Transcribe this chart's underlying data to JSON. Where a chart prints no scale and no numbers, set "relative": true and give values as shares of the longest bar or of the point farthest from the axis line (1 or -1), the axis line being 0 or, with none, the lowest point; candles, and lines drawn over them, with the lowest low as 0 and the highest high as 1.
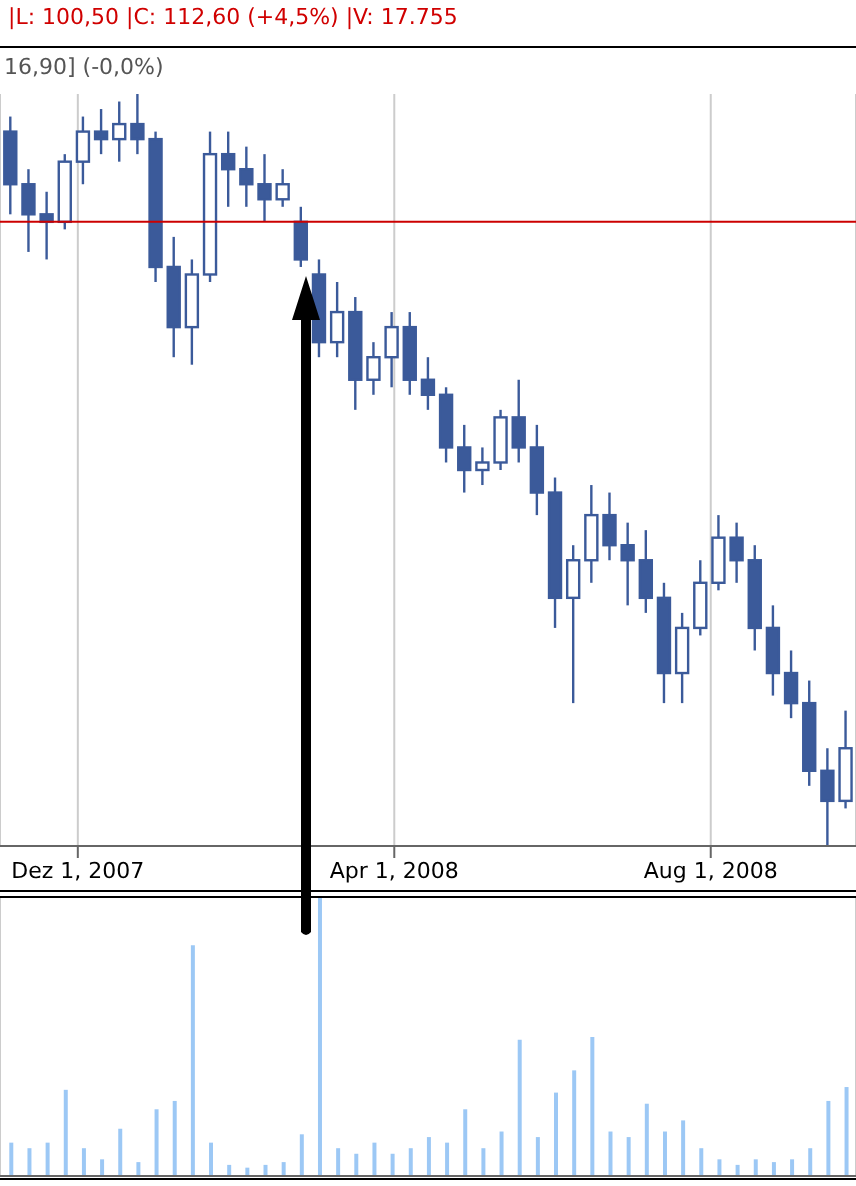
{
  "chart_data": [
    {
      "type": "candlestick",
      "relative": true,
      "annotations": [
        "|L: 100,50 |C: 112,60 (+4,5%) |V: 17.755",
        "16,90] (-0,0%)"
      ],
      "x": [
        "2007-11-05",
        "2007-11-12",
        "2007-11-19",
        "2007-11-26",
        "2007-12-03",
        "2007-12-10",
        "2007-12-17",
        "2007-12-24",
        "2007-12-31",
        "2008-01-07",
        "2008-01-14",
        "2008-01-21",
        "2008-01-28",
        "2008-02-04",
        "2008-02-11",
        "2008-02-18",
        "2008-02-25",
        "2008-03-03",
        "2008-03-10",
        "2008-03-17",
        "2008-03-24",
        "2008-03-31",
        "2008-04-07",
        "2008-04-14",
        "2008-04-21",
        "2008-04-28",
        "2008-05-05",
        "2008-05-12",
        "2008-05-19",
        "2008-05-26",
        "2008-06-02",
        "2008-06-09",
        "2008-06-16",
        "2008-06-23",
        "2008-06-30",
        "2008-07-07",
        "2008-07-14",
        "2008-07-21",
        "2008-07-28",
        "2008-08-04",
        "2008-08-11",
        "2008-08-18",
        "2008-08-25",
        "2008-09-01",
        "2008-09-08",
        "2008-09-15",
        "2008-09-22"
      ],
      "ohlc": [
        [
          0.95,
          0.97,
          0.84,
          0.88
        ],
        [
          0.88,
          0.9,
          0.79,
          0.84
        ],
        [
          0.84,
          0.87,
          0.78,
          0.83
        ],
        [
          0.83,
          0.92,
          0.82,
          0.91
        ],
        [
          0.91,
          0.97,
          0.88,
          0.95
        ],
        [
          0.95,
          0.98,
          0.92,
          0.94
        ],
        [
          0.94,
          0.99,
          0.91,
          0.96
        ],
        [
          0.96,
          1.0,
          0.92,
          0.94
        ],
        [
          0.94,
          0.95,
          0.75,
          0.77
        ],
        [
          0.77,
          0.81,
          0.65,
          0.69
        ],
        [
          0.69,
          0.78,
          0.64,
          0.76
        ],
        [
          0.76,
          0.95,
          0.75,
          0.92
        ],
        [
          0.92,
          0.95,
          0.85,
          0.9
        ],
        [
          0.9,
          0.93,
          0.85,
          0.88
        ],
        [
          0.88,
          0.92,
          0.83,
          0.86
        ],
        [
          0.86,
          0.9,
          0.85,
          0.88
        ],
        [
          0.83,
          0.85,
          0.77,
          0.78
        ],
        [
          0.76,
          0.78,
          0.65,
          0.67
        ],
        [
          0.67,
          0.75,
          0.65,
          0.71
        ],
        [
          0.71,
          0.73,
          0.58,
          0.62
        ],
        [
          0.62,
          0.67,
          0.6,
          0.65
        ],
        [
          0.65,
          0.71,
          0.61,
          0.69
        ],
        [
          0.69,
          0.71,
          0.6,
          0.62
        ],
        [
          0.62,
          0.65,
          0.58,
          0.6
        ],
        [
          0.6,
          0.61,
          0.51,
          0.53
        ],
        [
          0.53,
          0.56,
          0.47,
          0.5
        ],
        [
          0.5,
          0.53,
          0.48,
          0.51
        ],
        [
          0.51,
          0.58,
          0.5,
          0.57
        ],
        [
          0.57,
          0.62,
          0.51,
          0.53
        ],
        [
          0.53,
          0.56,
          0.44,
          0.47
        ],
        [
          0.47,
          0.49,
          0.29,
          0.33
        ],
        [
          0.33,
          0.4,
          0.19,
          0.38
        ],
        [
          0.38,
          0.48,
          0.35,
          0.44
        ],
        [
          0.44,
          0.47,
          0.38,
          0.4
        ],
        [
          0.4,
          0.43,
          0.32,
          0.38
        ],
        [
          0.38,
          0.42,
          0.31,
          0.33
        ],
        [
          0.33,
          0.35,
          0.19,
          0.23
        ],
        [
          0.23,
          0.31,
          0.19,
          0.29
        ],
        [
          0.29,
          0.38,
          0.28,
          0.35
        ],
        [
          0.35,
          0.44,
          0.34,
          0.41
        ],
        [
          0.41,
          0.43,
          0.35,
          0.38
        ],
        [
          0.38,
          0.4,
          0.26,
          0.29
        ],
        [
          0.29,
          0.32,
          0.2,
          0.23
        ],
        [
          0.23,
          0.26,
          0.17,
          0.19
        ],
        [
          0.19,
          0.22,
          0.08,
          0.1
        ],
        [
          0.1,
          0.13,
          0.0,
          0.06
        ],
        [
          0.06,
          0.18,
          0.05,
          0.13
        ]
      ],
      "color": "#3b5a9a",
      "xlim": [
        "2007-11-01",
        "2008-09-26"
      ],
      "xticks": [
        {
          "value": "2007-12-01",
          "label": "Dez 1, 2007"
        },
        {
          "value": "2008-04-01",
          "label": "Apr 1, 2008"
        },
        {
          "value": "2008-08-01",
          "label": "Aug 1, 2008"
        }
      ],
      "ref_lines": [
        {
          "axis": "y",
          "value": 0.83,
          "color": "#cc0000"
        }
      ],
      "grid": "x"
    },
    {
      "type": "bar",
      "relative": true,
      "tick_labels": false,
      "grid": "x",
      "color": "#9cc8f5",
      "x": [
        "2007-11-05",
        "2007-11-12",
        "2007-11-19",
        "2007-11-26",
        "2007-12-03",
        "2007-12-10",
        "2007-12-17",
        "2007-12-24",
        "2007-12-31",
        "2008-01-07",
        "2008-01-14",
        "2008-01-21",
        "2008-01-28",
        "2008-02-04",
        "2008-02-11",
        "2008-02-18",
        "2008-02-25",
        "2008-03-03",
        "2008-03-10",
        "2008-03-17",
        "2008-03-24",
        "2008-03-31",
        "2008-04-07",
        "2008-04-14",
        "2008-04-21",
        "2008-04-28",
        "2008-05-05",
        "2008-05-12",
        "2008-05-19",
        "2008-05-26",
        "2008-06-02",
        "2008-06-09",
        "2008-06-16",
        "2008-06-23",
        "2008-06-30",
        "2008-07-07",
        "2008-07-14",
        "2008-07-21",
        "2008-07-28",
        "2008-08-04",
        "2008-08-11",
        "2008-08-18",
        "2008-08-25",
        "2008-09-01",
        "2008-09-08",
        "2008-09-15",
        "2008-09-22"
      ],
      "values": [
        0.12,
        0.1,
        0.12,
        0.31,
        0.1,
        0.06,
        0.17,
        0.05,
        0.24,
        0.27,
        0.83,
        0.12,
        0.04,
        0.03,
        0.04,
        0.05,
        0.15,
        1,
        0.1,
        0.08,
        0.12,
        0.08,
        0.1,
        0.14,
        0.12,
        0.24,
        0.1,
        0.16,
        0.49,
        0.14,
        0.3,
        0.38,
        0.5,
        0.16,
        0.14,
        0.26,
        0.16,
        0.2,
        0.1,
        0.06,
        0.04,
        0.06,
        0.05,
        0.06,
        0.1,
        0.27,
        0.32
      ],
      "xlim": [
        "2007-11-01",
        "2008-09-26"
      ],
      "xticks": [
        {
          "value": "2007-12-01",
          "label": null
        },
        {
          "value": "2008-04-01",
          "label": null
        },
        {
          "value": "2008-08-01",
          "label": null
        }
      ]
    }
  ]
}
